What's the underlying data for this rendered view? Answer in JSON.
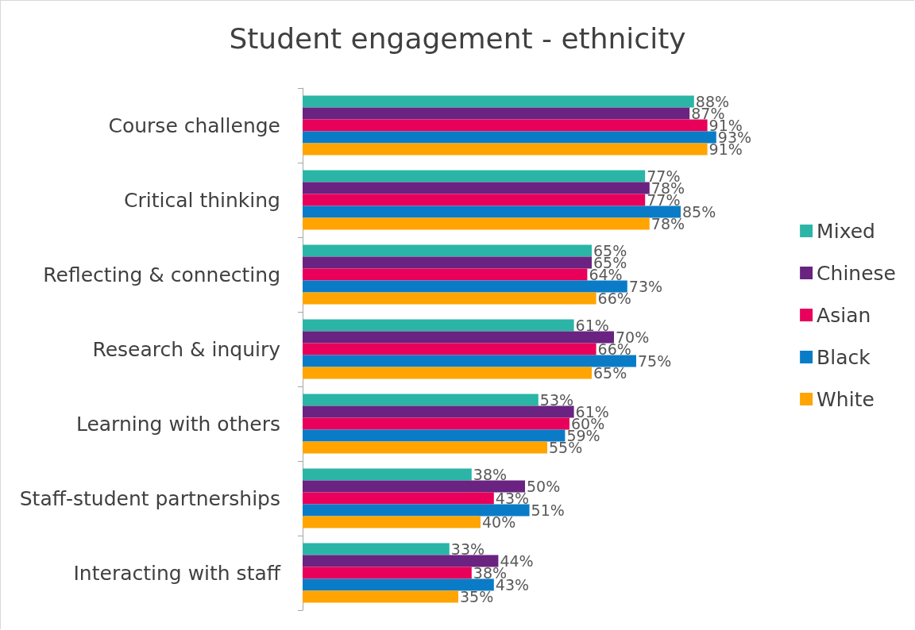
{
  "chart_data": {
    "type": "bar",
    "orientation": "horizontal",
    "title": "Student engagement - ethnicity",
    "categories": [
      "Course challenge",
      "Critical thinking",
      "Reflecting & connecting",
      "Research & inquiry",
      "Learning with others",
      "Staff-student partnerships",
      "Interacting with staff"
    ],
    "series": [
      {
        "name": "Mixed",
        "color": "#2bb5a6",
        "values": [
          88,
          77,
          65,
          61,
          53,
          38,
          33
        ],
        "value_labels": [
          "88%",
          "77%",
          "65%",
          "61%",
          "53%",
          "38%",
          "33%"
        ]
      },
      {
        "name": "Chinese",
        "color": "#6a2381",
        "values": [
          87,
          78,
          65,
          70,
          61,
          50,
          44
        ],
        "value_labels": [
          "87%",
          "78%",
          "65%",
          "70%",
          "61%",
          "50%",
          "44%"
        ]
      },
      {
        "name": "Asian",
        "color": "#e8005a",
        "values": [
          91,
          77,
          64,
          66,
          60,
          43,
          38
        ],
        "value_labels": [
          "91%",
          "77%",
          "64%",
          "66%",
          "60%",
          "43%",
          "38%"
        ]
      },
      {
        "name": "Black",
        "color": "#0a7cc7",
        "values": [
          93,
          85,
          73,
          75,
          59,
          51,
          43
        ],
        "value_labels": [
          "93%",
          "85%",
          "73%",
          "75%",
          "59%",
          "51%",
          "43%"
        ]
      },
      {
        "name": "White",
        "color": "#ffa400",
        "values": [
          91,
          78,
          66,
          65,
          55,
          40,
          35
        ],
        "value_labels": [
          "91%",
          "78%",
          "66%",
          "65%",
          "55%",
          "40%",
          "35%"
        ]
      }
    ],
    "legend": "right",
    "grid": false,
    "tick_labels": "y"
  }
}
